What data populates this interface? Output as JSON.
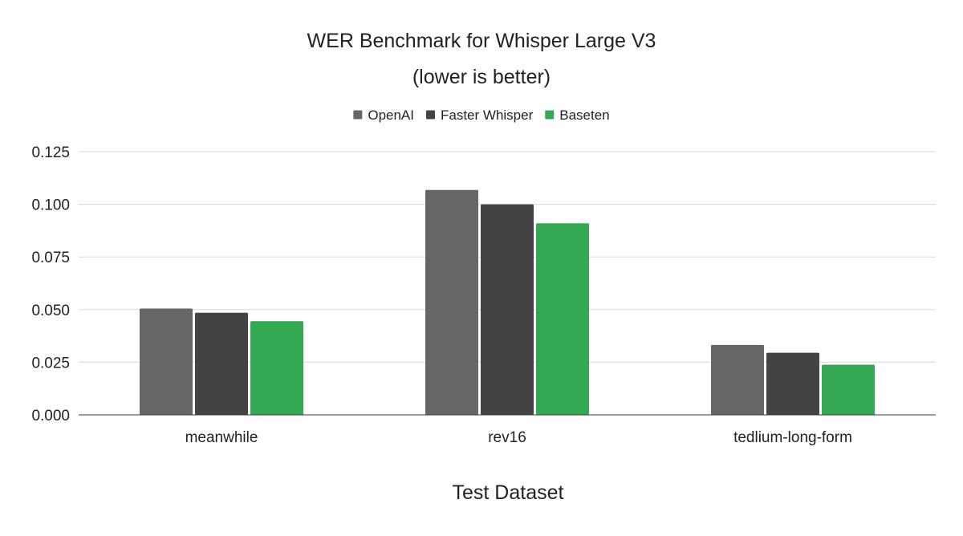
{
  "chart_data": {
    "type": "bar",
    "title": "WER Benchmark for Whisper Large V3",
    "subtitle": "(lower is better)",
    "xlabel": "Test Dataset",
    "ylabel": "",
    "ylim": [
      0,
      0.125
    ],
    "yticks": [
      "0.000",
      "0.025",
      "0.050",
      "0.075",
      "0.100",
      "0.125"
    ],
    "grid": true,
    "legend_position": "top",
    "categories": [
      "meanwhile",
      "rev16",
      "tedlium-long-form"
    ],
    "series": [
      {
        "name": "OpenAI",
        "color": "#666666",
        "values": [
          0.0505,
          0.1068,
          0.0332
        ]
      },
      {
        "name": "Faster Whisper",
        "color": "#434343",
        "values": [
          0.0485,
          0.1,
          0.0295
        ]
      },
      {
        "name": "Baseten",
        "color": "#34a853",
        "values": [
          0.0445,
          0.091,
          0.0238
        ]
      }
    ]
  }
}
